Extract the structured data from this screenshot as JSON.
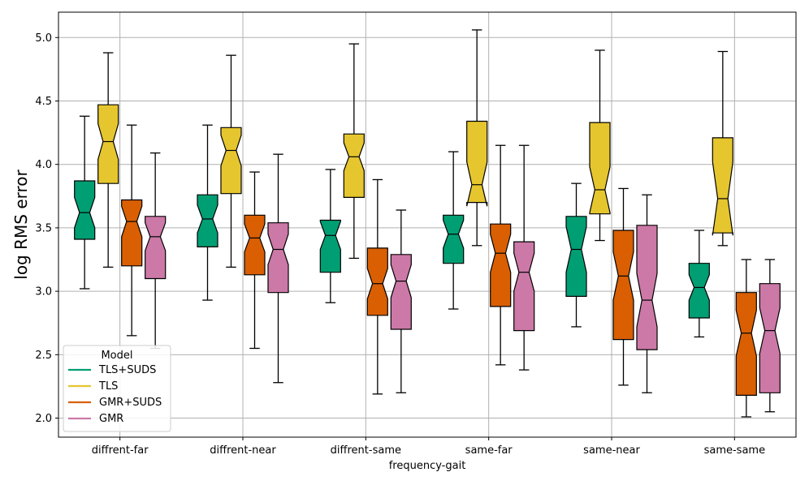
{
  "chart_data": {
    "type": "boxplot",
    "notched": true,
    "xlabel": "frequency-gait",
    "ylabel": "log RMS error",
    "ylim": [
      1.85,
      5.2
    ],
    "yticks": [
      2.0,
      2.5,
      3.0,
      3.5,
      4.0,
      4.5,
      5.0
    ],
    "ytick_labels": [
      "2.0",
      "2.5",
      "3.0",
      "3.5",
      "4.0",
      "4.5",
      "5.0"
    ],
    "grid": true,
    "categories": [
      "diffrent-far",
      "diffrent-near",
      "diffrent-same",
      "same-far",
      "same-near",
      "same-same"
    ],
    "legend": {
      "title": "Model",
      "placement": "lower-left",
      "entries": [
        "TLS+SUDS",
        "TLS",
        "GMR+SUDS",
        "GMR"
      ]
    },
    "series": [
      {
        "name": "TLS+SUDS",
        "color": "#009e73",
        "boxes": [
          {
            "whislo": 3.02,
            "q1": 3.41,
            "med": 3.62,
            "q3": 3.87,
            "whishi": 4.38,
            "ci": [
              3.5,
              3.74
            ]
          },
          {
            "whislo": 2.93,
            "q1": 3.35,
            "med": 3.57,
            "q3": 3.76,
            "whishi": 4.31,
            "ci": [
              3.46,
              3.68
            ]
          },
          {
            "whislo": 2.91,
            "q1": 3.15,
            "med": 3.44,
            "q3": 3.56,
            "whishi": 3.96,
            "ci": [
              3.33,
              3.55
            ]
          },
          {
            "whislo": 2.86,
            "q1": 3.22,
            "med": 3.45,
            "q3": 3.6,
            "whishi": 4.1,
            "ci": [
              3.34,
              3.56
            ]
          },
          {
            "whislo": 2.72,
            "q1": 2.96,
            "med": 3.33,
            "q3": 3.59,
            "whishi": 3.85,
            "ci": [
              3.15,
              3.51
            ]
          },
          {
            "whislo": 2.64,
            "q1": 2.79,
            "med": 3.03,
            "q3": 3.22,
            "whishi": 3.48,
            "ci": [
              2.93,
              3.13
            ]
          }
        ]
      },
      {
        "name": "TLS",
        "color": "#e6c62e",
        "boxes": [
          {
            "whislo": 3.19,
            "q1": 3.85,
            "med": 4.18,
            "q3": 4.47,
            "whishi": 4.88,
            "ci": [
              4.04,
              4.32
            ]
          },
          {
            "whislo": 3.19,
            "q1": 3.77,
            "med": 4.11,
            "q3": 4.29,
            "whishi": 4.86,
            "ci": [
              3.99,
              4.23
            ]
          },
          {
            "whislo": 3.26,
            "q1": 3.74,
            "med": 4.06,
            "q3": 4.24,
            "whishi": 4.95,
            "ci": [
              3.95,
              4.17
            ]
          },
          {
            "whislo": 3.36,
            "q1": 3.7,
            "med": 3.84,
            "q3": 4.34,
            "whishi": 5.06,
            "ci": [
              3.67,
              4.02
            ]
          },
          {
            "whislo": 3.4,
            "q1": 3.61,
            "med": 3.8,
            "q3": 4.33,
            "whishi": 4.9,
            "ci": [
              3.62,
              3.98
            ]
          },
          {
            "whislo": 3.36,
            "q1": 3.46,
            "med": 3.73,
            "q3": 4.21,
            "whishi": 4.89,
            "ci": [
              3.44,
              4.02
            ]
          }
        ]
      },
      {
        "name": "GMR+SUDS",
        "color": "#d95f02",
        "boxes": [
          {
            "whislo": 2.65,
            "q1": 3.2,
            "med": 3.55,
            "q3": 3.72,
            "whishi": 4.31,
            "ci": [
              3.43,
              3.67
            ]
          },
          {
            "whislo": 2.55,
            "q1": 3.13,
            "med": 3.42,
            "q3": 3.6,
            "whishi": 3.94,
            "ci": [
              3.31,
              3.53
            ]
          },
          {
            "whislo": 2.19,
            "q1": 2.81,
            "med": 3.06,
            "q3": 3.34,
            "whishi": 3.88,
            "ci": [
              2.94,
              3.18
            ]
          },
          {
            "whislo": 2.42,
            "q1": 2.88,
            "med": 3.3,
            "q3": 3.53,
            "whishi": 4.15,
            "ci": [
              3.15,
              3.45
            ]
          },
          {
            "whislo": 2.26,
            "q1": 2.62,
            "med": 3.12,
            "q3": 3.48,
            "whishi": 3.81,
            "ci": [
              2.93,
              3.31
            ]
          },
          {
            "whislo": 2.01,
            "q1": 2.18,
            "med": 2.67,
            "q3": 2.99,
            "whishi": 3.25,
            "ci": [
              2.49,
              2.85
            ]
          }
        ]
      },
      {
        "name": "GMR",
        "color": "#cc79a7",
        "boxes": [
          {
            "whislo": 2.55,
            "q1": 3.1,
            "med": 3.43,
            "q3": 3.59,
            "whishi": 4.09,
            "ci": [
              3.32,
              3.54
            ]
          },
          {
            "whislo": 2.28,
            "q1": 2.99,
            "med": 3.33,
            "q3": 3.54,
            "whishi": 4.08,
            "ci": [
              3.21,
              3.45
            ]
          },
          {
            "whislo": 2.2,
            "q1": 2.7,
            "med": 3.08,
            "q3": 3.29,
            "whishi": 3.64,
            "ci": [
              2.95,
              3.21
            ]
          },
          {
            "whislo": 2.38,
            "q1": 2.69,
            "med": 3.15,
            "q3": 3.39,
            "whishi": 4.15,
            "ci": [
              3.0,
              3.3
            ]
          },
          {
            "whislo": 2.2,
            "q1": 2.54,
            "med": 2.93,
            "q3": 3.52,
            "whishi": 3.76,
            "ci": [
              2.72,
              3.14
            ]
          },
          {
            "whislo": 2.05,
            "q1": 2.2,
            "med": 2.69,
            "q3": 3.06,
            "whishi": 3.25,
            "ci": [
              2.51,
              2.87
            ]
          }
        ]
      }
    ]
  }
}
